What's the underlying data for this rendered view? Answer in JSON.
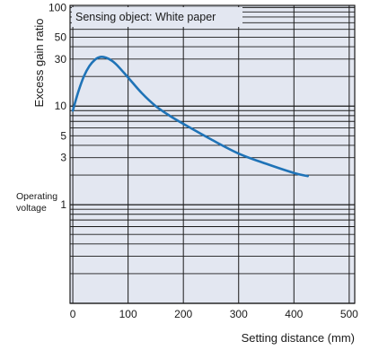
{
  "chart_data": {
    "type": "line",
    "xlabel": "Setting distance (mm)",
    "ylabel": "Excess gain ratio",
    "legend_text": "Sensing object: White paper",
    "legend_placement": "top-left",
    "annotation": [
      "Operating",
      "voltage"
    ],
    "xscale": "linear",
    "yscale": "log",
    "xlim": [
      -5,
      510
    ],
    "ylim": [
      0.1,
      105
    ],
    "grid": true,
    "x_ticks": [
      "0",
      "100",
      "200",
      "300",
      "400",
      "500"
    ],
    "x_tick_values": [
      0,
      100,
      200,
      300,
      400,
      500
    ],
    "y_ticks": [
      "1",
      "3",
      "5",
      "10",
      "30",
      "50",
      "100"
    ],
    "y_tick_values": [
      1,
      3,
      5,
      10,
      30,
      50,
      100
    ],
    "series": [
      {
        "x": [
          0,
          10,
          20,
          30,
          40,
          50,
          60,
          70,
          80,
          100,
          125,
          150,
          175,
          200,
          250,
          300,
          350,
          400,
          425
        ],
        "y": [
          9,
          14,
          20,
          25.5,
          29.5,
          31.5,
          31,
          29,
          26,
          19.5,
          13.5,
          10,
          8,
          6.6,
          4.6,
          3.3,
          2.6,
          2.1,
          1.95
        ]
      }
    ],
    "colors": {
      "plot_background": "#e3e7f1",
      "grid": "#1a1a1a",
      "line": "#1f73b7"
    }
  }
}
